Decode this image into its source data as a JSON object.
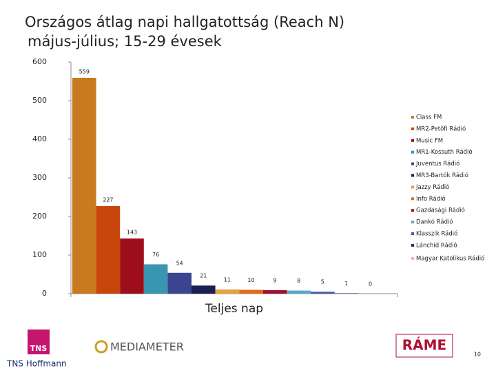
{
  "chart_data": {
    "type": "bar",
    "title": "Országos átlag napi hallgatottság (Reach N)",
    "subtitle": "május-július; 15-29 évesek",
    "categories": [
      "Teljes nap"
    ],
    "ylim": [
      0,
      600
    ],
    "yticks": [
      0,
      100,
      200,
      300,
      400,
      500,
      600
    ],
    "series": [
      {
        "name": "Class FM",
        "color": "#c97a1e",
        "values": [
          559
        ]
      },
      {
        "name": "MR2-Petőfi Rádió",
        "color": "#c8460c",
        "values": [
          227
        ]
      },
      {
        "name": "Music FM",
        "color": "#9e0e1a",
        "values": [
          143
        ]
      },
      {
        "name": "MR1-Kossuth Rádió",
        "color": "#3995b0",
        "values": [
          76
        ]
      },
      {
        "name": "Juventus Rádió",
        "color": "#3a4690",
        "values": [
          54
        ]
      },
      {
        "name": "MR3-Bartók Rádió",
        "color": "#1a2152",
        "values": [
          21
        ]
      },
      {
        "name": "Jazzy Rádió",
        "color": "#e2a23e",
        "values": [
          11
        ]
      },
      {
        "name": "Info Rádió",
        "color": "#e26a1a",
        "values": [
          10
        ]
      },
      {
        "name": "Gazdasági Rádió",
        "color": "#a0102c",
        "values": [
          9
        ]
      },
      {
        "name": "Dankó Rádió",
        "color": "#5aa8c8",
        "values": [
          8
        ]
      },
      {
        "name": "Klasszik Rádió",
        "color": "#4a5aa2",
        "values": [
          5
        ]
      },
      {
        "name": "Lánchíd Rádió",
        "color": "#203070",
        "values": [
          1
        ]
      },
      {
        "name": "Magyar Katolikus Rádió",
        "color": "#f0b4a4",
        "values": [
          0
        ]
      }
    ]
  },
  "footer": {
    "tns": "TNS",
    "tns_name": "TNS Hoffmann",
    "mediameter": "MEDIAMETER",
    "rame": "RÁME",
    "page_number": "10"
  }
}
